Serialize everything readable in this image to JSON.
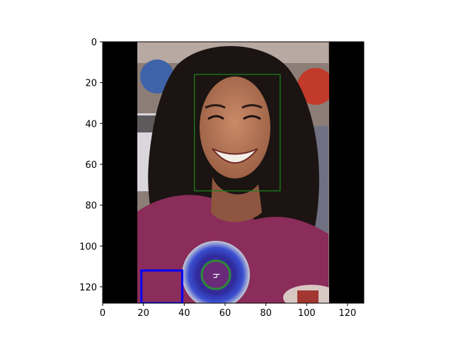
{
  "chart_data": {
    "type": "image",
    "title": "",
    "xlabel": "",
    "ylabel": "",
    "xlim": [
      0,
      128
    ],
    "ylim": [
      128,
      0
    ],
    "x_ticks": [
      0,
      20,
      40,
      60,
      80,
      100,
      120
    ],
    "y_ticks": [
      0,
      20,
      40,
      60,
      80,
      100,
      120
    ],
    "grid": false,
    "image": {
      "content": "photo of a smiling woman with long curly dark hair wearing a magenta top and a blue rosette badge",
      "padding_color": "#000000",
      "photo_x_range": [
        17,
        111
      ]
    },
    "boxes": [
      {
        "color": "#1a7f1a",
        "x": [
          45,
          87
        ],
        "y": [
          16,
          73
        ]
      },
      {
        "color": "#0000ff",
        "x": [
          19,
          39
        ],
        "y": [
          112,
          128
        ]
      }
    ]
  }
}
